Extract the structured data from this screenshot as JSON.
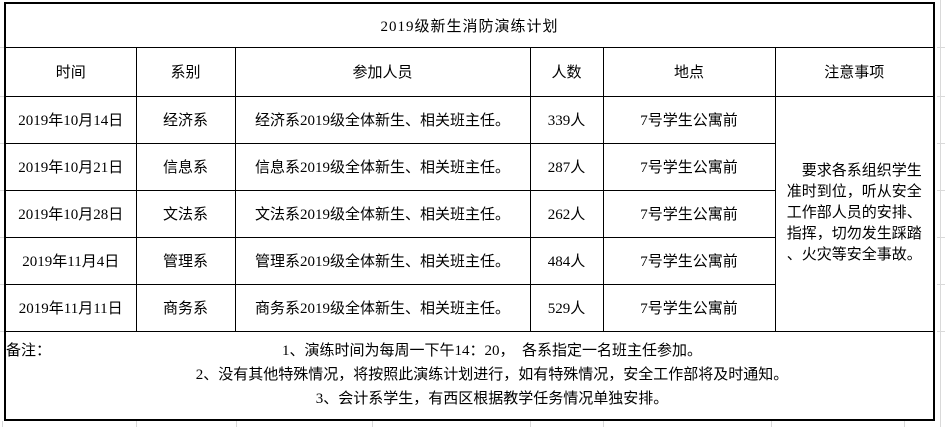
{
  "title": "2019级新生消防演练计划",
  "colors": {
    "border": "#000000",
    "background": "#ffffff",
    "gridline": "#d9d9d9",
    "text": "#000000"
  },
  "table": {
    "headers": [
      "时间",
      "系别",
      "参加人员",
      "人数",
      "地点",
      "注意事项"
    ],
    "rows": [
      {
        "time": "2019年10月14日",
        "dept": "经济系",
        "participants": "经济系2019级全体新生、相关班主任。",
        "count": "339人",
        "location": "7号学生公寓前"
      },
      {
        "time": "2019年10月21日",
        "dept": "信息系",
        "participants": "信息系2019级全体新生、相关班主任。",
        "count": "287人",
        "location": "7号学生公寓前"
      },
      {
        "time": "2019年10月28日",
        "dept": "文法系",
        "participants": "文法系2019级全体新生、相关班主任。",
        "count": "262人",
        "location": "7号学生公寓前"
      },
      {
        "time": "2019年11月4日",
        "dept": "管理系",
        "participants": "管理系2019级全体新生、相关班主任。",
        "count": "484人",
        "location": "7号学生公寓前"
      },
      {
        "time": "2019年11月11日",
        "dept": "商务系",
        "participants": "商务系2019级全体新生、相关班主任。",
        "count": "529人",
        "location": "7号学生公寓前"
      }
    ],
    "notes": "　要求各系组织学生\n准时到位，听从安全\n工作部人员的安排、\n指挥，切勿发生踩踏\n、火灾等安全事故。",
    "remarks_label": "备注：",
    "remarks": [
      "1、演练时间为每周一下午14：20，　各系指定一名班主任参加。",
      "2、没有其他特殊情况，将按照此演练计划进行，如有特殊情况，安全工作部将及时通知。",
      "3、会计系学生，有西区根据教学任务情况单独安排。"
    ]
  }
}
